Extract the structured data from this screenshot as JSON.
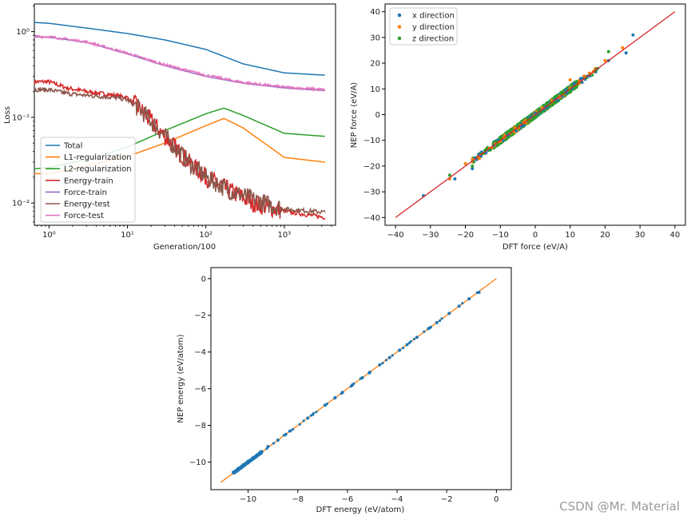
{
  "watermark": "CSDN @Mr. Material",
  "colors": {
    "blue": "#1f77b4",
    "orange": "#ff7f0e",
    "green": "#2ca02c",
    "red": "#d62728",
    "purple": "#9467bd",
    "brown": "#8c564b",
    "pink": "#e377c2"
  },
  "chart_data": [
    {
      "id": "loss",
      "type": "line",
      "xscale": "log",
      "yscale": "log",
      "xlabel": "Generation/100",
      "ylabel": "Loss",
      "xlim": [
        0.65,
        4500
      ],
      "ylim": [
        0.0055,
        2.1
      ],
      "xticks": [
        1,
        10,
        100,
        1000
      ],
      "xtick_labels": [
        "10⁰",
        "10¹",
        "10²",
        "10³"
      ],
      "yticks": [
        0.01,
        0.1,
        1
      ],
      "ytick_labels": [
        "10⁻²",
        "10⁻¹",
        "10⁰"
      ],
      "legend_position": "lower-left",
      "series": [
        {
          "name": "Total",
          "color": "#1f77b4",
          "x": [
            0.65,
            1,
            3,
            10,
            30,
            100,
            300,
            1000,
            3300
          ],
          "y": [
            1.28,
            1.25,
            1.1,
            0.95,
            0.8,
            0.62,
            0.42,
            0.33,
            0.31
          ]
        },
        {
          "name": "L1-regularization",
          "color": "#ff7f0e",
          "x": [
            0.65,
            1,
            3,
            10,
            30,
            100,
            170,
            300,
            1000,
            3300
          ],
          "y": [
            0.022,
            0.022,
            0.027,
            0.035,
            0.05,
            0.08,
            0.097,
            0.075,
            0.034,
            0.03
          ]
        },
        {
          "name": "L2-regularization",
          "color": "#2ca02c",
          "x": [
            0.65,
            1,
            3,
            10,
            30,
            100,
            170,
            300,
            1000,
            3300
          ],
          "y": [
            0.025,
            0.026,
            0.032,
            0.045,
            0.07,
            0.11,
            0.128,
            0.105,
            0.065,
            0.06
          ]
        },
        {
          "name": "Energy-train",
          "color": "#d62728",
          "noisy": true,
          "x": [
            0.65,
            1,
            1.7,
            3,
            7,
            10,
            15,
            30,
            60,
            100,
            200,
            400,
            1000,
            3300
          ],
          "y": [
            0.26,
            0.26,
            0.22,
            0.2,
            0.18,
            0.17,
            0.12,
            0.06,
            0.03,
            0.02,
            0.014,
            0.01,
            0.008,
            0.0068
          ]
        },
        {
          "name": "Force-train",
          "color": "#9467bd",
          "x": [
            0.65,
            1,
            3,
            10,
            30,
            100,
            300,
            1000,
            3300
          ],
          "y": [
            0.87,
            0.86,
            0.75,
            0.55,
            0.4,
            0.3,
            0.25,
            0.22,
            0.205
          ]
        },
        {
          "name": "Energy-test",
          "color": "#8c564b",
          "noisy": true,
          "x": [
            0.65,
            1,
            1.7,
            3,
            7,
            10,
            15,
            30,
            60,
            100,
            200,
            400,
            1000,
            3300
          ],
          "y": [
            0.21,
            0.21,
            0.19,
            0.18,
            0.17,
            0.16,
            0.12,
            0.06,
            0.03,
            0.02,
            0.014,
            0.011,
            0.0085,
            0.0078
          ]
        },
        {
          "name": "Force-test",
          "color": "#e377c2",
          "noisy_small": true,
          "x": [
            0.65,
            1,
            3,
            10,
            30,
            100,
            300,
            1000,
            3300
          ],
          "y": [
            0.88,
            0.87,
            0.76,
            0.56,
            0.41,
            0.31,
            0.255,
            0.225,
            0.21
          ]
        }
      ]
    },
    {
      "id": "force",
      "type": "scatter",
      "xlabel": "DFT force (eV/A)",
      "ylabel": "NEP force (eV/A)",
      "xlim": [
        -43,
        43
      ],
      "ylim": [
        -43,
        43
      ],
      "xticks": [
        -40,
        -30,
        -20,
        -10,
        0,
        10,
        20,
        30,
        40
      ],
      "xtick_labels": [
        "−40",
        "−30",
        "−20",
        "−10",
        "0",
        "10",
        "20",
        "30",
        "40"
      ],
      "yticks": [
        -40,
        -30,
        -20,
        -10,
        0,
        10,
        20,
        30,
        40
      ],
      "ytick_labels": [
        "−40",
        "−30",
        "−20",
        "−10",
        "0",
        "10",
        "20",
        "30",
        "40"
      ],
      "legend_position": "top-left",
      "reference_line": {
        "x": [
          -40,
          40
        ],
        "y": [
          -40,
          40
        ],
        "color": "#d62728"
      },
      "series": [
        {
          "name": "x direction",
          "color": "#1f77b4",
          "points": [
            [
              -32,
              -31.5
            ],
            [
              -23,
              -25
            ],
            [
              -18,
              -21
            ],
            [
              -8,
              -8
            ],
            [
              -4,
              -4.5
            ],
            [
              0,
              0.5
            ],
            [
              3,
              3
            ],
            [
              6,
              6
            ],
            [
              9,
              8.5
            ],
            [
              13,
              14
            ],
            [
              21,
              21
            ],
            [
              26,
              24
            ],
            [
              28,
              31
            ]
          ]
        },
        {
          "name": "y direction",
          "color": "#ff7f0e",
          "points": [
            [
              -24.5,
              -25
            ],
            [
              -20,
              -19
            ],
            [
              -16,
              -17
            ],
            [
              -9,
              -9
            ],
            [
              -3,
              -3
            ],
            [
              2,
              2.5
            ],
            [
              7,
              7
            ],
            [
              10,
              13.5
            ],
            [
              14,
              15
            ],
            [
              20,
              21
            ],
            [
              25,
              26
            ]
          ]
        },
        {
          "name": "z direction",
          "color": "#2ca02c",
          "points": [
            [
              -24.5,
              -23.5
            ],
            [
              -18,
              -20
            ],
            [
              -14,
              -13.5
            ],
            [
              -11,
              -10.5
            ],
            [
              -7,
              -7
            ],
            [
              -5,
              -4
            ],
            [
              -2,
              -2
            ],
            [
              1,
              1
            ],
            [
              4,
              3.5
            ],
            [
              8,
              8
            ],
            [
              12,
              12
            ],
            [
              21,
              24.5
            ]
          ]
        }
      ],
      "band": {
        "x_range": [
          -12,
          12
        ],
        "color": "#2ca02c"
      }
    },
    {
      "id": "energy",
      "type": "scatter",
      "xlabel": "DFT energy (eV/atom)",
      "ylabel": "NEP energy (eV/atom)",
      "xlim": [
        -11.5,
        0.6
      ],
      "ylim": [
        -11.5,
        0.6
      ],
      "xticks": [
        -10,
        -8,
        -6,
        -4,
        -2,
        0
      ],
      "xtick_labels": [
        "−10",
        "−8",
        "−6",
        "−4",
        "−2",
        "0"
      ],
      "yticks": [
        -10,
        -8,
        -6,
        -4,
        -2,
        0
      ],
      "ytick_labels": [
        "−10",
        "−8",
        "−6",
        "−4",
        "−2",
        "0"
      ],
      "reference_line": {
        "x": [
          -11.1,
          0
        ],
        "y": [
          -11.1,
          0
        ],
        "color": "#ff7f0e"
      },
      "series": [
        {
          "name": "energy",
          "color": "#1f77b4",
          "points": [
            [
              -10.6,
              -10.55
            ],
            [
              -10.4,
              -10.35
            ],
            [
              -10.2,
              -10.15
            ],
            [
              -10,
              -9.95
            ],
            [
              -9.8,
              -9.8
            ],
            [
              -9.6,
              -9.6
            ],
            [
              -9.5,
              -9.45
            ],
            [
              -9.2,
              -9.15
            ],
            [
              -8.8,
              -8.8
            ],
            [
              -8.3,
              -8.3
            ],
            [
              -7.6,
              -7.6
            ],
            [
              -6.9,
              -6.9
            ],
            [
              -6.5,
              -6.5
            ],
            [
              -6.2,
              -6.2
            ],
            [
              -5.8,
              -5.8
            ],
            [
              -5.4,
              -5.4
            ],
            [
              -5.1,
              -5.1
            ],
            [
              -4.7,
              -4.7
            ],
            [
              -4.3,
              -4.3
            ],
            [
              -3.9,
              -3.9
            ],
            [
              -3.6,
              -3.6
            ],
            [
              -3.2,
              -3.2
            ],
            [
              -2.7,
              -2.7
            ],
            [
              -2.4,
              -2.4
            ],
            [
              -1.9,
              -1.9
            ],
            [
              -1.5,
              -1.5
            ],
            [
              -1.1,
              -1.1
            ],
            [
              -0.7,
              -0.75
            ]
          ]
        }
      ]
    }
  ]
}
